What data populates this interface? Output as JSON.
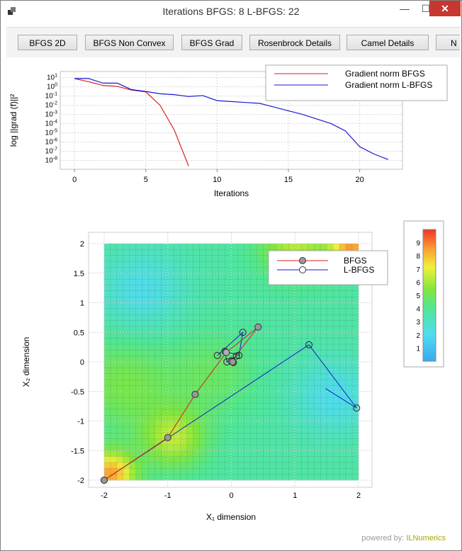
{
  "window": {
    "title": "Iterations BFGS: 8 L-BFGS: 22",
    "minimize_label": "—",
    "maximize_label": "☐",
    "close_label": "✕"
  },
  "toolbar": {
    "buttons": [
      "BFGS 2D",
      "BFGS Non Convex",
      "BFGS Grad",
      "Rosenbrock Details",
      "Camel Details",
      "N"
    ]
  },
  "colors": {
    "bfgs": "#d62020",
    "lbfgs": "#1a1ad0",
    "close_button": "#c7372f"
  },
  "chart_data": [
    {
      "type": "line",
      "xlabel": "Iterations",
      "ylabel": "log ||grad (f)||²",
      "xlim": [
        -1,
        23
      ],
      "x_ticks": [
        0,
        5,
        10,
        15,
        20
      ],
      "y_scale": "log",
      "y_ticks": [
        "10^1",
        "10^0",
        "10^-1",
        "10^-2",
        "10^-3",
        "10^-4",
        "10^-5",
        "10^-6",
        "10^-7",
        "10^-8"
      ],
      "y_tick_exponents": [
        1,
        0,
        -1,
        -2,
        -3,
        -4,
        -5,
        -6,
        -7,
        -8
      ],
      "grid": true,
      "legend_position": "top-right",
      "series": [
        {
          "name": "Gradient norm BFGS",
          "x": [
            0,
            1,
            2,
            3,
            4,
            5,
            6,
            7,
            8
          ],
          "log10_y": [
            0.9,
            0.55,
            0.15,
            0.05,
            -0.35,
            -0.55,
            -2.0,
            -4.7,
            -8.6
          ]
        },
        {
          "name": "Gradient norm L-BFGS",
          "x": [
            0,
            1,
            2,
            3,
            4,
            5,
            6,
            7,
            8,
            9,
            10,
            11,
            12,
            13,
            14,
            15,
            16,
            17,
            18,
            19,
            20,
            21,
            22
          ],
          "log10_y": [
            0.9,
            0.9,
            0.4,
            0.4,
            -0.3,
            -0.5,
            -0.75,
            -0.85,
            -1.05,
            -0.95,
            -1.5,
            -1.6,
            -1.7,
            -1.8,
            -2.2,
            -2.6,
            -3.0,
            -3.5,
            -4.0,
            -4.8,
            -6.5,
            -7.3,
            -7.9
          ]
        }
      ]
    },
    {
      "type": "heatmap",
      "xlabel": "X₁ dimension",
      "ylabel": "X₂ dimension",
      "xlim": [
        -2,
        2
      ],
      "ylim": [
        -2,
        2
      ],
      "x_ticks": [
        "-2",
        "-1",
        "0",
        "1",
        "2"
      ],
      "y_ticks": [
        "-2",
        "-1.5",
        "-1",
        "-0.5",
        "0",
        "0.5",
        "1",
        "1.5",
        "2"
      ],
      "grid": true,
      "legend_position": "top-right",
      "colorbar": {
        "min": 0,
        "max": 10,
        "ticks": [
          "1",
          "2",
          "3",
          "4",
          "5",
          "6",
          "7",
          "8",
          "9"
        ]
      },
      "series": [
        {
          "name": "BFGS",
          "marker": "filled-circle",
          "x": [
            -2,
            -1,
            -0.57,
            -0.08,
            0.42,
            0.0,
            0.02
          ],
          "y": [
            -2,
            -1.28,
            -0.55,
            0.16,
            0.59,
            0.01,
            0.0
          ]
        },
        {
          "name": "L-BFGS",
          "marker": "open-circle",
          "x": [
            -2,
            1.22,
            1.97,
            1.48
          ],
          "y": [
            -2,
            0.29,
            -0.78,
            -0.45
          ],
          "cluster_x": [
            -0.22,
            0.18,
            0.12,
            -0.1,
            -0.07,
            0.08,
            0.0,
            0.03
          ],
          "cluster_y": [
            0.11,
            0.5,
            0.11,
            0.18,
            0.0,
            0.1,
            0.02,
            -0.01
          ]
        }
      ]
    }
  ],
  "footer": {
    "prefix": "powered by: ",
    "brand": "ILNumerics"
  }
}
